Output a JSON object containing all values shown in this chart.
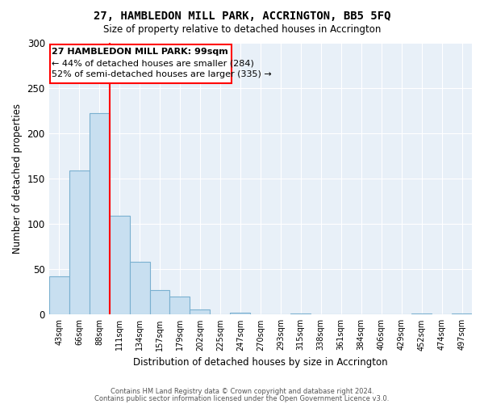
{
  "title": "27, HAMBLEDON MILL PARK, ACCRINGTON, BB5 5FQ",
  "subtitle": "Size of property relative to detached houses in Accrington",
  "xlabel": "Distribution of detached houses by size in Accrington",
  "ylabel": "Number of detached properties",
  "bar_labels": [
    "43sqm",
    "66sqm",
    "88sqm",
    "111sqm",
    "134sqm",
    "157sqm",
    "179sqm",
    "202sqm",
    "225sqm",
    "247sqm",
    "270sqm",
    "293sqm",
    "315sqm",
    "338sqm",
    "361sqm",
    "384sqm",
    "406sqm",
    "429sqm",
    "452sqm",
    "474sqm",
    "497sqm"
  ],
  "bar_values": [
    42,
    159,
    222,
    109,
    58,
    27,
    20,
    6,
    0,
    2,
    0,
    0,
    1,
    0,
    0,
    0,
    0,
    0,
    1,
    0,
    1
  ],
  "bar_color": "#c8dff0",
  "bar_edge_color": "#7ab0d0",
  "background_color": "#e8f0f8",
  "ylim": [
    0,
    300
  ],
  "yticks": [
    0,
    50,
    100,
    150,
    200,
    250,
    300
  ],
  "red_line_index": 2,
  "annotation_line1": "27 HAMBLEDON MILL PARK: 99sqm",
  "annotation_line2": "← 44% of detached houses are smaller (284)",
  "annotation_line3": "52% of semi-detached houses are larger (335) →",
  "footer1": "Contains HM Land Registry data © Crown copyright and database right 2024.",
  "footer2": "Contains public sector information licensed under the Open Government Licence v3.0."
}
